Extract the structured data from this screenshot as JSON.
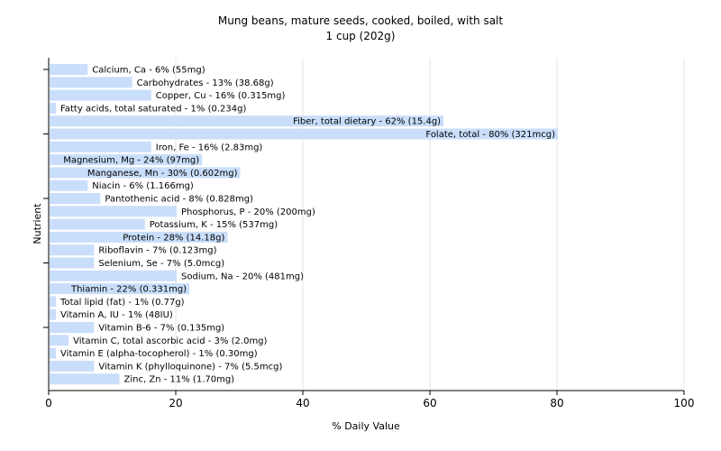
{
  "chart_data": {
    "type": "bar",
    "orientation": "horizontal",
    "title": "Mung beans, mature seeds, cooked, boiled, with salt",
    "subtitle": "1 cup (202g)",
    "xlabel": "% Daily Value",
    "ylabel": "Nutrient",
    "xlim": [
      0,
      100
    ],
    "xticks": [
      0,
      20,
      40,
      60,
      80,
      100
    ],
    "grid": true,
    "bar_color": "#c9defa",
    "categories": [
      "Calcium, Ca",
      "Carbohydrates",
      "Copper, Cu",
      "Fatty acids, total saturated",
      "Fiber, total dietary",
      "Folate, total",
      "Iron, Fe",
      "Magnesium, Mg",
      "Manganese, Mn",
      "Niacin",
      "Pantothenic acid",
      "Phosphorus, P",
      "Potassium, K",
      "Protein",
      "Riboflavin",
      "Selenium, Se",
      "Sodium, Na",
      "Thiamin",
      "Total lipid (fat)",
      "Vitamin A, IU",
      "Vitamin B-6",
      "Vitamin C, total ascorbic acid",
      "Vitamin E (alpha-tocopherol)",
      "Vitamin K (phylloquinone)",
      "Zinc, Zn"
    ],
    "values": [
      6,
      13,
      16,
      1,
      62,
      80,
      16,
      24,
      30,
      6,
      8,
      20,
      15,
      28,
      7,
      7,
      20,
      22,
      1,
      1,
      7,
      3,
      1,
      7,
      11
    ],
    "labels": [
      "Calcium, Ca - 6% (55mg)",
      "Carbohydrates - 13% (38.68g)",
      "Copper, Cu - 16% (0.315mg)",
      "Fatty acids, total saturated - 1% (0.234g)",
      "Fiber, total dietary - 62% (15.4g)",
      "Folate, total - 80% (321mcg)",
      "Iron, Fe - 16% (2.83mg)",
      "Magnesium, Mg - 24% (97mg)",
      "Manganese, Mn - 30% (0.602mg)",
      "Niacin - 6% (1.166mg)",
      "Pantothenic acid - 8% (0.828mg)",
      "Phosphorus, P - 20% (200mg)",
      "Potassium, K - 15% (537mg)",
      "Protein - 28% (14.18g)",
      "Riboflavin - 7% (0.123mg)",
      "Selenium, Se - 7% (5.0mcg)",
      "Sodium, Na - 20% (481mg)",
      "Thiamin - 22% (0.331mg)",
      "Total lipid (fat) - 1% (0.77g)",
      "Vitamin A, IU - 1% (48IU)",
      "Vitamin B-6 - 7% (0.135mg)",
      "Vitamin C, total ascorbic acid - 3% (2.0mg)",
      "Vitamin E (alpha-tocopherol) - 1% (0.30mg)",
      "Vitamin K (phylloquinone) - 7% (5.5mcg)",
      "Zinc, Zn - 11% (1.70mg)"
    ]
  }
}
